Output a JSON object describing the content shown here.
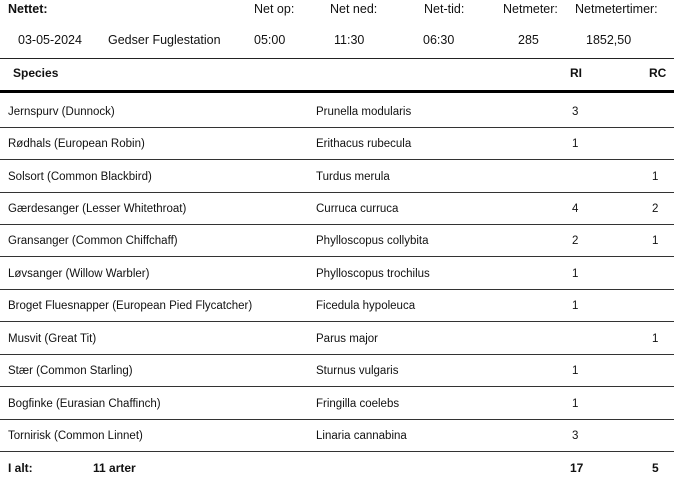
{
  "net_info": {
    "headers": {
      "nettet": "Nettet:",
      "net_op": "Net op:",
      "net_ned": "Net ned:",
      "net_tid": "Net-tid:",
      "netmeter": "Netmeter:",
      "netmetertimer": "Netmetertimer:"
    },
    "values": {
      "date": "03-05-2024",
      "station": "Gedser Fuglestation",
      "net_op": "05:00",
      "net_ned": "11:30",
      "net_tid": "06:30",
      "netmeter": "285",
      "netmetertimer": "1852,50"
    }
  },
  "table": {
    "headers": {
      "species": "Species",
      "ri": "RI",
      "rc": "RC"
    },
    "rows": [
      {
        "name": "Jernspurv   (Dunnock)",
        "latin": "Prunella modularis",
        "ri": "3",
        "rc": ""
      },
      {
        "name": "Rødhals   (European Robin)",
        "latin": "Erithacus rubecula",
        "ri": "1",
        "rc": ""
      },
      {
        "name": "Solsort   (Common Blackbird)",
        "latin": "Turdus merula",
        "ri": "",
        "rc": "1"
      },
      {
        "name": "Gærdesanger   (Lesser Whitethroat)",
        "latin": "Curruca curruca",
        "ri": "4",
        "rc": "2"
      },
      {
        "name": "Gransanger   (Common Chiffchaff)",
        "latin": "Phylloscopus collybita",
        "ri": "2",
        "rc": "1"
      },
      {
        "name": "Løvsanger   (Willow Warbler)",
        "latin": "Phylloscopus trochilus",
        "ri": "1",
        "rc": ""
      },
      {
        "name": "Broget Fluesnapper   (European Pied Flycatcher)",
        "latin": "Ficedula hypoleuca",
        "ri": "1",
        "rc": ""
      },
      {
        "name": "Musvit   (Great Tit)",
        "latin": "Parus major",
        "ri": "",
        "rc": "1"
      },
      {
        "name": "Stær   (Common Starling)",
        "latin": "Sturnus vulgaris",
        "ri": "1",
        "rc": ""
      },
      {
        "name": "Bogfinke   (Eurasian Chaffinch)",
        "latin": "Fringilla coelebs",
        "ri": "1",
        "rc": ""
      },
      {
        "name": "Tornirisk   (Common Linnet)",
        "latin": "Linaria cannabina",
        "ri": "3",
        "rc": ""
      }
    ],
    "total": {
      "label": "I alt:",
      "count": "11 arter",
      "ri": "17",
      "rc": "5"
    }
  }
}
